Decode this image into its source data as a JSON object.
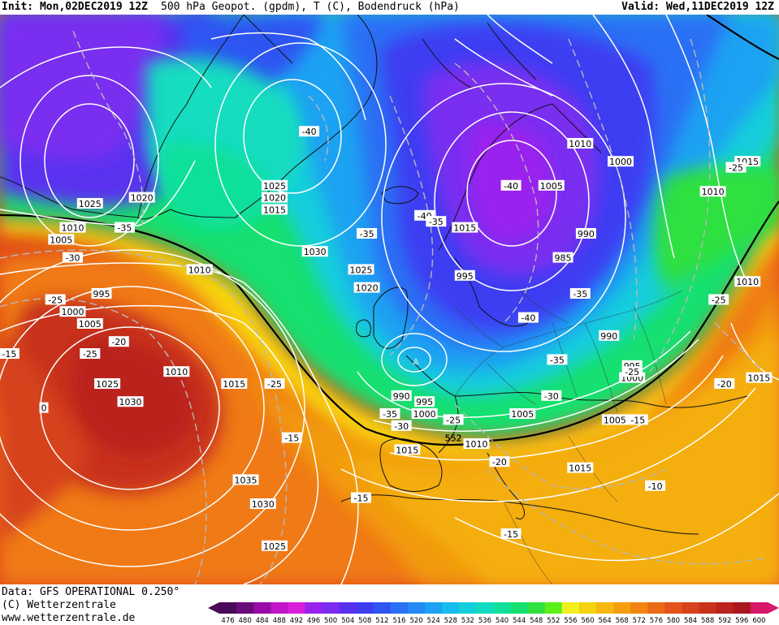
{
  "header": {
    "init": "Init: Mon,02DEC2019 12Z",
    "product": "500 hPa Geopot. (gpdm), T (C), Bodendruck (hPa)",
    "valid": "Valid: Wed,11DEC2019 12Z"
  },
  "footer": {
    "data_line": "Data: GFS OPERATIONAL 0.250°",
    "copyright": "(C) Wetterzentrale",
    "url": "www.wetterzentrale.de"
  },
  "legend": {
    "values": [
      "476",
      "480",
      "484",
      "488",
      "492",
      "496",
      "500",
      "504",
      "508",
      "512",
      "516",
      "520",
      "524",
      "528",
      "532",
      "536",
      "540",
      "544",
      "548",
      "552",
      "556",
      "560",
      "564",
      "568",
      "572",
      "576",
      "580",
      "584",
      "588",
      "592",
      "596",
      "600"
    ],
    "colors": [
      "#4a0a5a",
      "#6a0c7a",
      "#9a0aa6",
      "#c214c8",
      "#d91edc",
      "#9a22ee",
      "#7a2df0",
      "#5a30f0",
      "#3c3cf2",
      "#2f55f2",
      "#2a70f4",
      "#2188f4",
      "#1ba2f2",
      "#16bcec",
      "#14cedc",
      "#12dcc0",
      "#10e09a",
      "#16e070",
      "#2ee040",
      "#5cf01a",
      "#f0f01e",
      "#f5d20a",
      "#f6b80c",
      "#f49e0e",
      "#f28412",
      "#ec6a14",
      "#e25418",
      "#d6421a",
      "#c8321c",
      "#ba241c",
      "#a8181c",
      "#d8186a"
    ]
  },
  "map_labels": {
    "pressure": [
      {
        "text": "1025",
        "lon": -52,
        "lat": 75
      },
      {
        "text": "1020",
        "lon": -43,
        "lat": 76
      },
      {
        "text": "1015",
        "lon": -72,
        "lat": 70
      },
      {
        "text": "1010",
        "lon": -55,
        "lat": 71
      },
      {
        "text": "1005",
        "lon": -57,
        "lat": 69
      },
      {
        "text": "995",
        "lon": -50,
        "lat": 60
      },
      {
        "text": "1000",
        "lon": -55,
        "lat": 57
      },
      {
        "text": "1005",
        "lon": -52,
        "lat": 55
      },
      {
        "text": "1025",
        "lon": -20,
        "lat": 78
      },
      {
        "text": "1020",
        "lon": -20,
        "lat": 76
      },
      {
        "text": "1015",
        "lon": -20,
        "lat": 74
      },
      {
        "text": "1010",
        "lon": -33,
        "lat": 64
      },
      {
        "text": "1030",
        "lon": -13,
        "lat": 67
      },
      {
        "text": "1025",
        "lon": -5,
        "lat": 64
      },
      {
        "text": "1020",
        "lon": -4,
        "lat": 61
      },
      {
        "text": "1010",
        "lon": -37,
        "lat": 47
      },
      {
        "text": "1015",
        "lon": -27,
        "lat": 45
      },
      {
        "text": "1025",
        "lon": -49,
        "lat": 45
      },
      {
        "text": "1030",
        "lon": -45,
        "lat": 42
      },
      {
        "text": "1035",
        "lon": -25,
        "lat": 29
      },
      {
        "text": "1030",
        "lon": -22,
        "lat": 25
      },
      {
        "text": "1025",
        "lon": -20,
        "lat": 18
      },
      {
        "text": "1015",
        "lon": 13,
        "lat": 71
      },
      {
        "text": "1010",
        "lon": 33,
        "lat": 85
      },
      {
        "text": "1005",
        "lon": 28,
        "lat": 78
      },
      {
        "text": "1000",
        "lon": 40,
        "lat": 82
      },
      {
        "text": "990",
        "lon": 34,
        "lat": 70
      },
      {
        "text": "985",
        "lon": 30,
        "lat": 66
      },
      {
        "text": "995",
        "lon": 13,
        "lat": 63
      },
      {
        "text": "990",
        "lon": 38,
        "lat": 53
      },
      {
        "text": "995",
        "lon": 42,
        "lat": 48
      },
      {
        "text": "1000",
        "lon": 42,
        "lat": 46
      },
      {
        "text": "990",
        "lon": 2,
        "lat": 43
      },
      {
        "text": "995",
        "lon": 6,
        "lat": 42
      },
      {
        "text": "1000",
        "lon": 6,
        "lat": 40
      },
      {
        "text": "1005",
        "lon": 23,
        "lat": 40
      },
      {
        "text": "1005",
        "lon": 39,
        "lat": 39
      },
      {
        "text": "1015",
        "lon": 3,
        "lat": 34
      },
      {
        "text": "1010",
        "lon": 15,
        "lat": 35
      },
      {
        "text": "1015",
        "lon": 33,
        "lat": 31
      },
      {
        "text": "1015",
        "lon": 62,
        "lat": 82
      },
      {
        "text": "1010",
        "lon": 56,
        "lat": 77
      },
      {
        "text": "1010",
        "lon": 62,
        "lat": 62
      },
      {
        "text": "1015",
        "lon": 64,
        "lat": 46
      }
    ],
    "geopotential": [
      {
        "text": "552",
        "lon": 11,
        "lat": 36
      },
      {
        "text": "552",
        "lon": 11,
        "lat": 36
      }
    ],
    "temperature": [
      {
        "text": "-40",
        "lon": -14,
        "lat": 87
      },
      {
        "text": "-35",
        "lon": -46,
        "lat": 71
      },
      {
        "text": "-30",
        "lon": -55,
        "lat": 66
      },
      {
        "text": "-25",
        "lon": -58,
        "lat": 59
      },
      {
        "text": "-20",
        "lon": -47,
        "lat": 52
      },
      {
        "text": "-25",
        "lon": -52,
        "lat": 50
      },
      {
        "text": "-25",
        "lon": -20,
        "lat": 45
      },
      {
        "text": "-35",
        "lon": -4,
        "lat": 70
      },
      {
        "text": "-40",
        "lon": 6,
        "lat": 73
      },
      {
        "text": "-40",
        "lon": 21,
        "lat": 78
      },
      {
        "text": "-35",
        "lon": 8,
        "lat": 72
      },
      {
        "text": "-35",
        "lon": 33,
        "lat": 60
      },
      {
        "text": "-40",
        "lon": 24,
        "lat": 56
      },
      {
        "text": "-35",
        "lon": 29,
        "lat": 49
      },
      {
        "text": "-35",
        "lon": 0,
        "lat": 40
      },
      {
        "text": "-30",
        "lon": 2,
        "lat": 38
      },
      {
        "text": "-25",
        "lon": 11,
        "lat": 39
      },
      {
        "text": "-30",
        "lon": 28,
        "lat": 43
      },
      {
        "text": "-25",
        "lon": 42,
        "lat": 47
      },
      {
        "text": "-25",
        "lon": 57,
        "lat": 59
      },
      {
        "text": "-25",
        "lon": 60,
        "lat": 81
      },
      {
        "text": "-20",
        "lon": 58,
        "lat": 45
      },
      {
        "text": "-15",
        "lon": 43,
        "lat": 39
      },
      {
        "text": "-20",
        "lon": 19,
        "lat": 32
      },
      {
        "text": "-15",
        "lon": -17,
        "lat": 36
      },
      {
        "text": "-15",
        "lon": -5,
        "lat": 26
      },
      {
        "text": "-15",
        "lon": 21,
        "lat": 20
      },
      {
        "text": "-10",
        "lon": 46,
        "lat": 28
      },
      {
        "text": "-15",
        "lon": -66,
        "lat": 50
      },
      {
        "text": "0",
        "lon": -60,
        "lat": 41
      }
    ]
  }
}
